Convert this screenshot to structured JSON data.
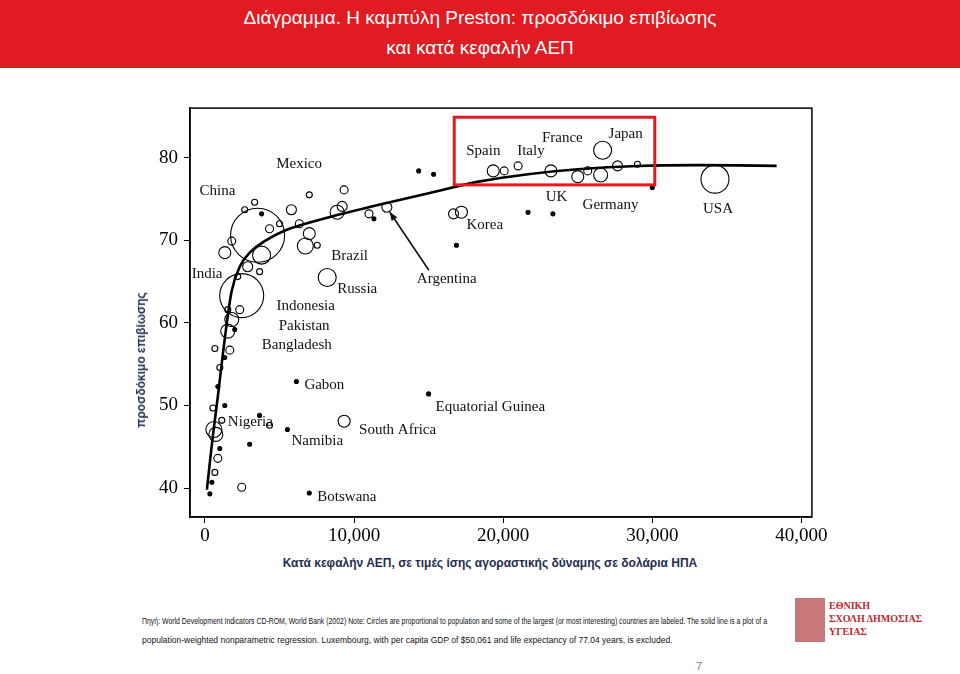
{
  "header": {
    "title": [
      "Διάγραμμα. Η καμπύλη Preston: προσδόκιμο επιβίωσης",
      "και κατά κεφαλήν ΑΕΠ"
    ]
  },
  "chart_data": {
    "type": "scatter",
    "x_label": "Κατά κεφαλήν ΑΕΠ, σε τιμές ίσης αγοραστικής δύναμης σε δολάρια ΗΠΑ",
    "y_label": "προσδόκιμο επιβίωσης",
    "xlim": [
      -1000,
      40700
    ],
    "ylim": [
      36.5,
      86
    ],
    "xticks": [
      0,
      {
        "value": 10000,
        "label": "10,000"
      },
      {
        "value": 20000,
        "label": "20,000"
      },
      {
        "value": 30000,
        "label": "30,000"
      },
      {
        "value": 40000,
        "label": "40,000"
      }
    ],
    "yticks": [
      40,
      50,
      60,
      70,
      80
    ],
    "grid": false,
    "boxed_labels": [
      "Spain",
      "Italy",
      "France",
      "Japan"
    ],
    "series": [
      {
        "type": "scatter",
        "marker": "circle",
        "color": "#000000",
        "x": [
          3533,
          2467,
          8867,
          6733,
          8200,
          3800,
          1800,
          1533,
          600,
          6133,
          5533,
          9333,
          7000,
          15000,
          12200,
          17200,
          19333,
          20067,
          23200,
          25000,
          26533,
          26667,
          34200,
          333,
          467,
          667,
          867,
          1000,
          733,
          1133,
          1333,
          533,
          867,
          1000,
          1333,
          667,
          1667,
          1533,
          2000,
          2333,
          2200,
          2867,
          3667,
          4333,
          5000,
          5800,
          6333,
          7000,
          7533,
          9333,
          9200,
          11000,
          11333,
          7000,
          3800,
          3333,
          1333,
          1800,
          2667,
          14333,
          15333,
          16667,
          16867,
          21667,
          23333,
          21000,
          25667,
          27667,
          29000,
          30000,
          4333,
          2467,
          3667,
          3000
        ],
        "values": [
          70.6,
          63.3,
          73.4,
          69.3,
          65.5,
          68.2,
          60.4,
          59.0,
          47.1,
          52.9,
          47.1,
          48.1,
          39.4,
          51.4,
          74.0,
          73.4,
          78.4,
          78.4,
          78.4,
          77.7,
          77.9,
          80.9,
          77.4,
          39.3,
          40.7,
          41.9,
          43.6,
          44.8,
          46.5,
          48.2,
          50.0,
          49.7,
          52.3,
          54.6,
          55.8,
          56.9,
          56.7,
          61.6,
          59.2,
          61.6,
          65.6,
          66.8,
          66.2,
          71.4,
          72.0,
          73.7,
          72.0,
          70.8,
          69.4,
          76.1,
          74.1,
          73.2,
          72.6,
          75.5,
          73.2,
          74.6,
          68.5,
          69.9,
          73.7,
          78.4,
          78.0,
          73.2,
          69.4,
          73.4,
          73.2,
          79.0,
          78.4,
          79.0,
          79.2,
          76.4,
          47.6,
          40.1,
          48.8,
          45.3
        ],
        "sizes": [
          27,
          22,
          7,
          8,
          9,
          9,
          7,
          7,
          8,
          2,
          2,
          6,
          2,
          2,
          5,
          6,
          6,
          4,
          6,
          6,
          7,
          9,
          14,
          2,
          2,
          3,
          4,
          2,
          7,
          3,
          2,
          3,
          2,
          3,
          2,
          3,
          4,
          3,
          2,
          4,
          3,
          5,
          3,
          4,
          3,
          5,
          4,
          6,
          3,
          4,
          5,
          4,
          2,
          3,
          2,
          3,
          6,
          4,
          3,
          2,
          2,
          5,
          2,
          2,
          2,
          4,
          4,
          5,
          3,
          2,
          3,
          4,
          2,
          2
        ],
        "labels": [
          "China",
          "India",
          "Mexico",
          "Brazil",
          "Russia",
          "Indonesia",
          "Pakistan",
          "Bangladesh",
          "Nigeria",
          "Gabon",
          "Namibia",
          "South Africa",
          "Botswana",
          "Equatorial Guinea",
          "Argentina",
          "Korea",
          "Spain",
          "Italy",
          "France",
          "UK",
          "Germany",
          "Japan",
          "USA",
          null,
          null,
          null,
          null,
          null,
          null,
          null,
          null,
          null,
          null,
          null,
          null,
          null,
          null,
          null,
          null,
          null,
          null,
          null,
          null,
          null,
          null,
          null,
          null,
          null,
          null,
          null,
          null,
          null,
          null,
          null,
          null,
          null,
          null,
          null,
          null,
          null,
          null,
          null,
          null,
          null,
          null,
          null,
          null,
          null,
          null,
          null,
          null,
          null,
          null,
          null
        ]
      },
      {
        "type": "line",
        "line_style": "solid",
        "color": "#000000",
        "x": [
          133,
          467,
          867,
          1333,
          1800,
          2333,
          3000,
          4000,
          5667,
          8333,
          11667,
          15000,
          18333,
          21667,
          25000,
          29000,
          33000,
          38333
        ],
        "values": [
          39.8,
          45.3,
          51.1,
          58.1,
          63.9,
          66.8,
          68.5,
          69.9,
          71.4,
          72.8,
          74.3,
          75.7,
          77.1,
          78.0,
          78.6,
          79.0,
          79.1,
          79.0
        ]
      }
    ]
  },
  "source": [
    "Πηγή: World Development Indicators CD-ROM, World Bank (2002) Note: Circles are proportional to population and some of the largest (or most interesting) countries are labeled. The solid line is a plot of a",
    "population-weighted nonparametric regression. Luxembourg, with per capita GDP of $50,061 and life expectancy of 77.04 years, is excluded."
  ],
  "logo": [
    "ΕΘΝΙΚΗ",
    "ΣΧΟΛΗ ΔΗΜΟΣΙΑΣ",
    "ΥΓΕΙΑΣ"
  ],
  "page_number": 7
}
